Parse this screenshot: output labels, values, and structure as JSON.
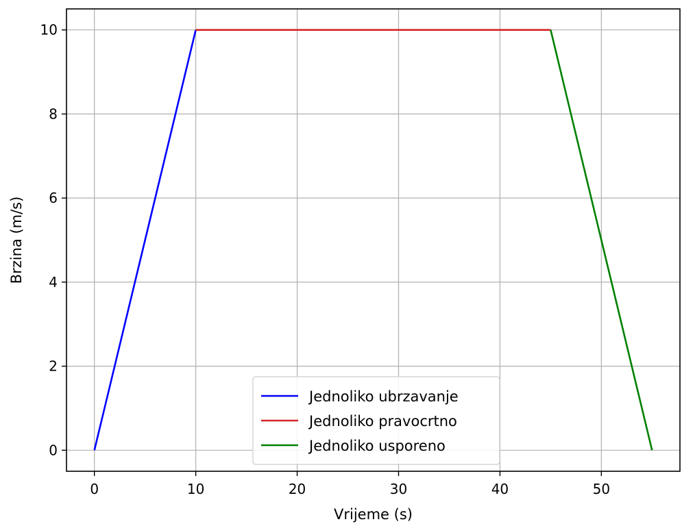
{
  "chart_data": {
    "type": "line",
    "xlabel": "Vrijeme (s)",
    "ylabel": "Brzina (m/s)",
    "xlim": [
      -2.75,
      57.75
    ],
    "ylim": [
      -0.5,
      10.5
    ],
    "xticks": [
      0,
      10,
      20,
      30,
      40,
      50
    ],
    "yticks": [
      0,
      2,
      4,
      6,
      8,
      10
    ],
    "grid": true,
    "legend_position": "bottom-center",
    "series": [
      {
        "name": "Jednoliko ubrzavanje",
        "color": "#0000ff",
        "x": [
          0,
          10
        ],
        "y": [
          0,
          10
        ]
      },
      {
        "name": "Jednoliko pravocrtno",
        "color": "#d62728",
        "x": [
          10,
          45
        ],
        "y": [
          10,
          10
        ]
      },
      {
        "name": "Jednoliko usporeno",
        "color": "#008000",
        "x": [
          45,
          55
        ],
        "y": [
          10,
          0
        ]
      }
    ]
  }
}
